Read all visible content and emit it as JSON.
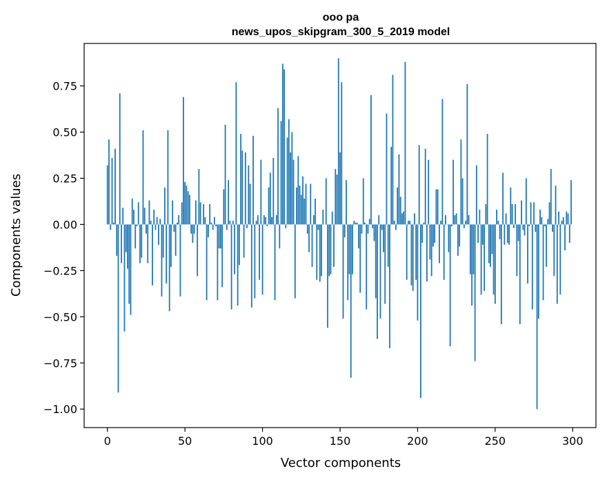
{
  "chart_data": {
    "type": "bar",
    "title": "ooo pa",
    "subtitle": "news_upos_skipgram_300_5_2019 model",
    "xlabel": "Vector components",
    "ylabel": "Components values",
    "xlim": [
      -15,
      315
    ],
    "ylim": [
      -1.1,
      0.98
    ],
    "xticks": [
      0,
      50,
      100,
      150,
      200,
      250,
      300
    ],
    "xtick_labels": [
      "0",
      "50",
      "100",
      "150",
      "200",
      "250",
      "300"
    ],
    "yticks": [
      -1.0,
      -0.75,
      -0.5,
      -0.25,
      0.0,
      0.25,
      0.5,
      0.75
    ],
    "ytick_labels": [
      "−1.00",
      "−0.75",
      "−0.50",
      "−0.25",
      "0.00",
      "0.25",
      "0.50",
      "0.75"
    ],
    "grid": false,
    "bar_color": "#1f77b4",
    "x_start": 0,
    "values": [
      0.32,
      0.46,
      -0.03,
      0.36,
      0.01,
      0.41,
      -0.17,
      -0.91,
      0.71,
      -0.21,
      0.09,
      -0.58,
      -0.15,
      -0.24,
      -0.43,
      -0.49,
      0.14,
      0.08,
      -0.13,
      -0.01,
      0.12,
      -0.21,
      -0.18,
      0.51,
      0.09,
      -0.05,
      -0.21,
      0.13,
      0.02,
      -0.33,
      0.08,
      -0.03,
      0.04,
      -0.11,
      0.03,
      -0.39,
      -0.18,
      0.2,
      -0.32,
      0.51,
      -0.47,
      -0.23,
      0.13,
      -0.04,
      -0.17,
      0.01,
      0.05,
      -0.39,
      0.12,
      0.69,
      0.23,
      0.21,
      0.18,
      0.16,
      -0.05,
      -0.1,
      -0.05,
      0.13,
      -0.28,
      0.3,
      0.12,
      0.0,
      0.11,
      0.04,
      -0.41,
      -0.07,
      0.11,
      0.01,
      -0.03,
      0.04,
      -0.01,
      -0.41,
      -0.13,
      -0.13,
      -0.34,
      0.19,
      0.54,
      -0.03,
      0.24,
      0.02,
      -0.46,
      0.02,
      -0.27,
      0.77,
      -0.44,
      -0.22,
      0.49,
      0.4,
      -0.18,
      0.39,
      -0.02,
      0.32,
      0.22,
      -0.45,
      0.48,
      -0.4,
      0.02,
      0.05,
      -0.3,
      0.35,
      -0.38,
      0.05,
      0.04,
      -0.01,
      0.2,
      0.28,
      0.04,
      0.36,
      -0.41,
      0.05,
      0.63,
      -0.13,
      0.56,
      0.87,
      0.84,
      -0.02,
      0.47,
      0.57,
      0.39,
      0.5,
      0.35,
      -0.4,
      0.2,
      0.37,
      0.21,
      0.16,
      0.26,
      0.14,
      0.22,
      -0.05,
      -0.15,
      0.22,
      -0.23,
      0.05,
      0.14,
      -0.3,
      -0.03,
      -0.31,
      -0.28,
      0.08,
      0.0,
      0.25,
      -0.56,
      -0.28,
      -0.27,
      0.07,
      -0.23,
      0.3,
      0.27,
      0.9,
      0.39,
      0.77,
      -0.51,
      -0.07,
      0.24,
      -0.41,
      -0.27,
      -0.83,
      -0.27,
      0.02,
      0.01,
      0.01,
      -0.13,
      -0.37,
      -0.05,
      0.25,
      0.01,
      -0.46,
      -0.05,
      0.03,
      0.7,
      -0.02,
      -0.09,
      -0.4,
      -0.62,
      0.05,
      -0.51,
      -0.03,
      -0.15,
      -0.43,
      0.6,
      -0.23,
      -0.67,
      0.42,
      0.81,
      0.02,
      -0.03,
      0.2,
      0.38,
      0.15,
      0.06,
      0.07,
      0.88,
      -0.3,
      0.02,
      0.02,
      -0.33,
      -0.36,
      0.06,
      -0.3,
      -0.52,
      0.43,
      -0.94,
      -0.1,
      0.01,
      0.41,
      -0.31,
      0.35,
      -0.19,
      -0.28,
      -0.12,
      -0.1,
      0.19,
      0.19,
      -0.21,
      0.02,
      0.68,
      -0.3,
      0.05,
      0.0,
      -0.15,
      -0.66,
      -0.01,
      0.35,
      0.05,
      0.06,
      -0.17,
      -0.12,
      0.46,
      0.25,
      -0.02,
      0.02,
      0.76,
      0.05,
      -0.27,
      -0.44,
      -0.27,
      -0.74,
      0.32,
      -0.1,
      0.08,
      -0.38,
      -0.11,
      -0.36,
      0.11,
      0.49,
      -0.21,
      -0.23,
      -0.16,
      -0.38,
      -0.43,
      0.08,
      0.02,
      -0.08,
      -0.54,
      0.28,
      -0.11,
      0.06,
      -0.1,
      -0.11,
      0.2,
      0.11,
      -0.02,
      0.11,
      -0.28,
      -0.09,
      -0.54,
      0.13,
      -0.03,
      -0.06,
      0.25,
      -0.32,
      -0.01,
      0.12,
      -0.46,
      0.12,
      -0.04,
      -1.0,
      -0.51,
      0.08,
      0.04,
      -0.41,
      -0.01,
      -0.23,
      0.03,
      0.12,
      0.3,
      -0.04,
      -0.28,
      0.21,
      -0.43,
      0.07,
      -0.38,
      0.02,
      0.04,
      -0.14,
      0.07,
      0.06,
      -0.1,
      0.24
    ]
  }
}
